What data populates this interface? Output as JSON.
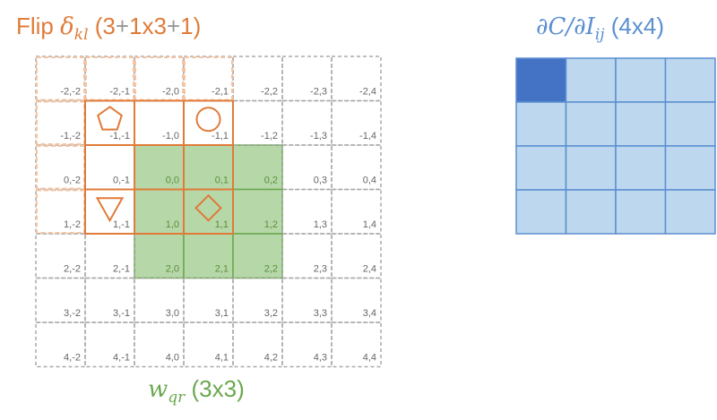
{
  "flip_title": {
    "prefix": "Flip ",
    "symbol": "δ",
    "subscript": "kl",
    "size_open": " (3",
    "plus1": "+",
    "size_mid": "1x3",
    "plus2": "+",
    "size_close": "1)"
  },
  "grad_title": {
    "symbol": "∂C/∂I",
    "subscript": "ij",
    "size": " (4x4)"
  },
  "weight_title": {
    "symbol": "w",
    "subscript": "qr",
    "size": " (3x3)"
  },
  "grid": {
    "rows": [
      "-2",
      "-1",
      "0",
      "1",
      "2",
      "3",
      "4"
    ],
    "cols": [
      "-2",
      "-1",
      "0",
      "1",
      "2",
      "3",
      "4"
    ],
    "label_separator": ","
  },
  "kernel_cells": [
    "0,0",
    "0,1",
    "0,2",
    "1,0",
    "1,1",
    "1,2",
    "2,0",
    "2,1",
    "2,2"
  ],
  "flipped_window": {
    "rows": [
      "-1",
      "0",
      "1"
    ],
    "cols": [
      "-1",
      "0",
      "1"
    ]
  },
  "shapes": [
    {
      "icon": "pentagon-icon",
      "cell": "-1,-1"
    },
    {
      "icon": "circle-icon",
      "cell": "-1,1"
    },
    {
      "icon": "triangle-icon",
      "cell": "1,-1"
    },
    {
      "icon": "diamond-icon",
      "cell": "1,1"
    }
  ],
  "output_grid": {
    "rows": 4,
    "cols": 4,
    "highlight": "0,0"
  },
  "colors": {
    "orange": "#e07b39",
    "orange_light": "#f4c4a3",
    "green_fill": "#b6d7a8",
    "green_stroke": "#6aa84f",
    "blue_fill": "#bdd7ee",
    "blue_dark": "#4472c4",
    "blue_stroke": "#5b8fd0",
    "grid_dash": "#aaaaaa"
  }
}
